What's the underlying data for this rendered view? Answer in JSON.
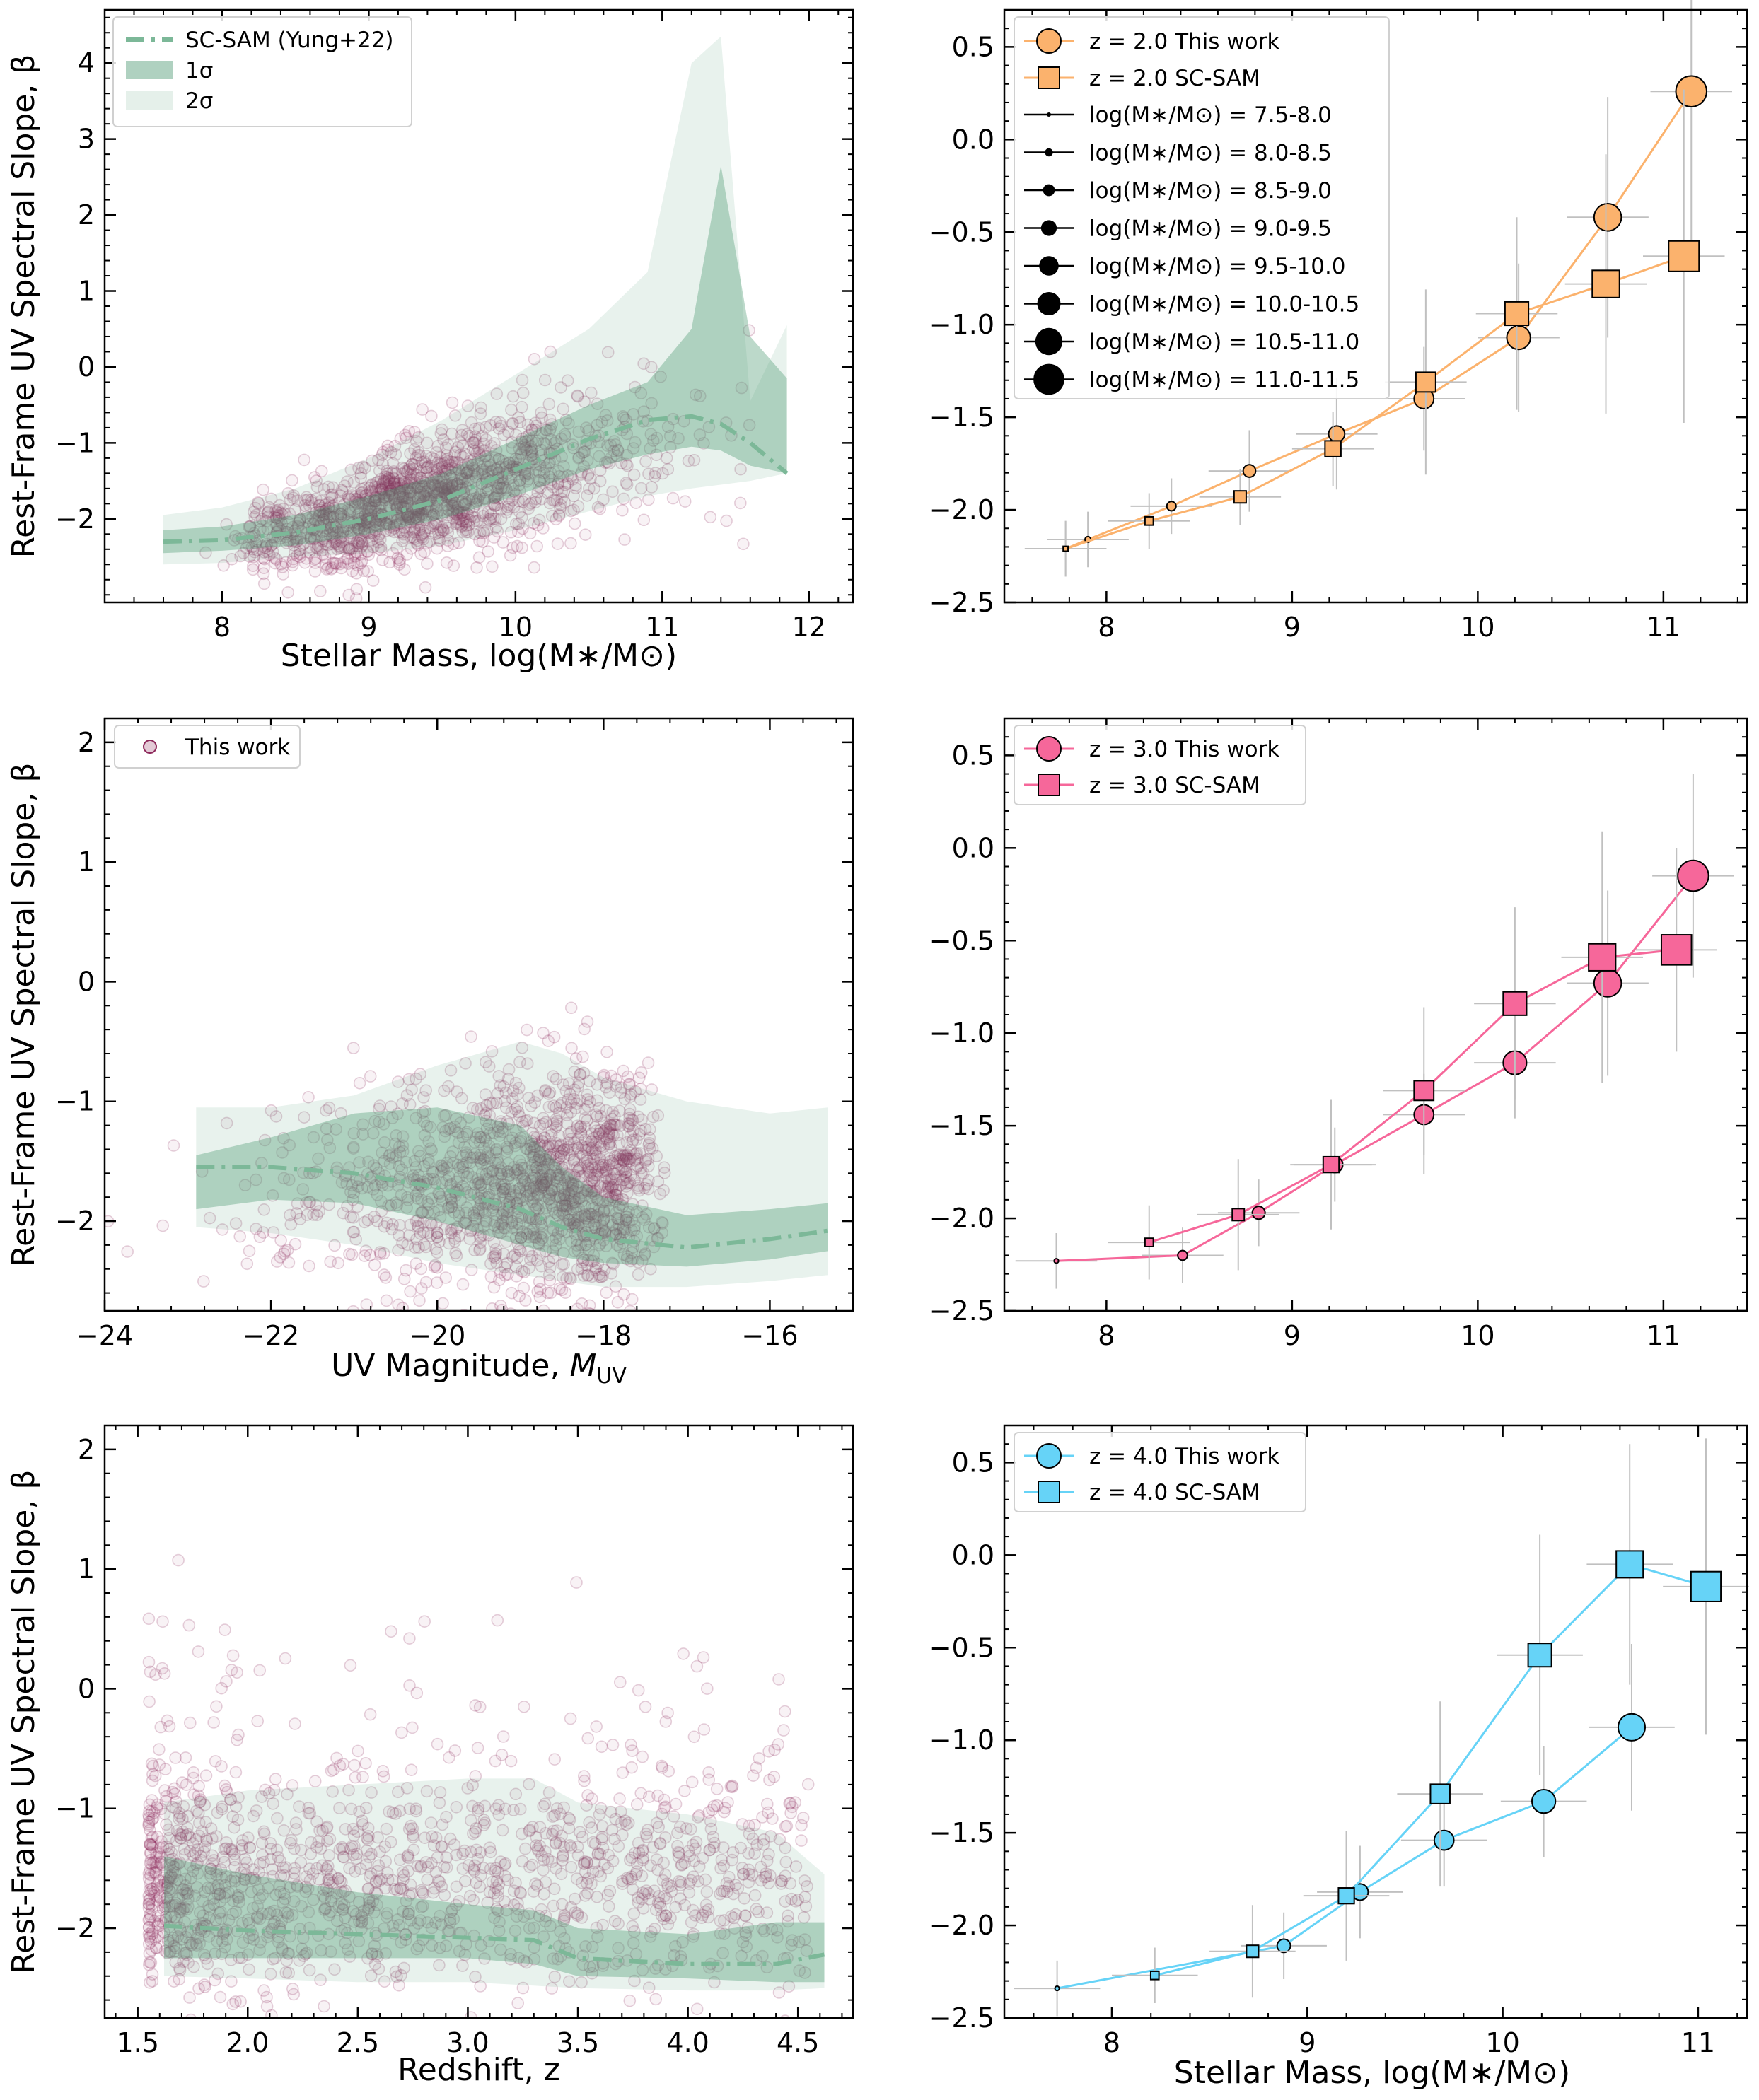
{
  "colors": {
    "sam_band": "#4e9a74",
    "sam_line": "#7cb898",
    "scatter": "#8e2a5c",
    "z2": "#fbb26d",
    "z3": "#f6679a",
    "z4": "#66d3f7",
    "errbar": "#c0c0c0"
  },
  "chart_data": [
    {
      "type": "scatter",
      "panel": "left-top",
      "xlabel": "Stellar Mass, log(M∗/M⊙)",
      "ylabel": "Rest-Frame UV Spectral Slope, β",
      "xlim": [
        7.2,
        12.3
      ],
      "ylim": [
        -3.1,
        4.7
      ],
      "xticks": [
        "8",
        "9",
        "10",
        "11",
        "12"
      ],
      "yticks": [
        "−2",
        "−1",
        "0",
        "1",
        "2",
        "3",
        "4"
      ],
      "legend": [
        "SC-SAM (Yung+22)",
        "1σ",
        "2σ"
      ],
      "sam": {
        "x": [
          7.6,
          8.0,
          8.5,
          9.0,
          9.5,
          10.0,
          10.5,
          10.9,
          11.2,
          11.4,
          11.6,
          11.85
        ],
        "median": [
          -2.3,
          -2.28,
          -2.18,
          -2.0,
          -1.75,
          -1.35,
          -0.95,
          -0.7,
          -0.65,
          -0.75,
          -1.0,
          -1.4
        ],
        "lo1": [
          -2.45,
          -2.42,
          -2.35,
          -2.2,
          -2.0,
          -1.7,
          -1.35,
          -1.15,
          -1.05,
          -1.1,
          -1.3,
          -1.4
        ],
        "hi1": [
          -2.15,
          -2.1,
          -1.95,
          -1.7,
          -1.4,
          -0.95,
          -0.5,
          -0.2,
          0.5,
          2.65,
          0.4,
          -0.15
        ],
        "lo2": [
          -2.6,
          -2.58,
          -2.5,
          -2.45,
          -2.35,
          -2.15,
          -1.9,
          -1.7,
          -1.6,
          -1.55,
          -1.5,
          -1.4
        ],
        "hi2": [
          -1.95,
          -1.85,
          -1.6,
          -1.2,
          -0.7,
          -0.1,
          0.5,
          1.25,
          4.0,
          4.35,
          -0.45,
          0.55
        ]
      }
    },
    {
      "type": "scatter",
      "panel": "left-middle",
      "xlabel": "UV Magnitude, MUV",
      "ylabel": "Rest-Frame UV Spectral Slope, β",
      "xlim": [
        -24.0,
        -15.0
      ],
      "ylim": [
        -2.75,
        2.2
      ],
      "xticks": [
        "−24",
        "−22",
        "−20",
        "−18",
        "−16"
      ],
      "yticks": [
        "−2",
        "−1",
        "0",
        "1",
        "2"
      ],
      "legend": [
        "This work"
      ],
      "sam": {
        "x": [
          -22.9,
          -22.0,
          -21.0,
          -20.0,
          -19.0,
          -18.5,
          -18.0,
          -17.0,
          -16.0,
          -15.3
        ],
        "median": [
          -1.55,
          -1.55,
          -1.6,
          -1.72,
          -1.9,
          -2.05,
          -2.15,
          -2.22,
          -2.15,
          -2.08
        ],
        "lo1": [
          -1.9,
          -1.82,
          -1.85,
          -2.0,
          -2.2,
          -2.3,
          -2.35,
          -2.38,
          -2.32,
          -2.25
        ],
        "hi1": [
          -1.45,
          -1.3,
          -1.1,
          -1.05,
          -1.2,
          -1.55,
          -1.8,
          -1.95,
          -1.9,
          -1.85
        ],
        "lo2": [
          -2.05,
          -2.1,
          -2.2,
          -2.35,
          -2.45,
          -2.5,
          -2.55,
          -2.55,
          -2.5,
          -2.45
        ],
        "hi2": [
          -1.05,
          -1.05,
          -0.95,
          -0.7,
          -0.5,
          -0.6,
          -0.8,
          -1.0,
          -1.1,
          -1.05
        ]
      }
    },
    {
      "type": "scatter",
      "panel": "left-bottom",
      "xlabel": "Redshift, z",
      "ylabel": "Rest-Frame UV Spectral Slope, β",
      "xlim": [
        1.35,
        4.75
      ],
      "ylim": [
        -2.75,
        2.2
      ],
      "xticks": [
        "1.5",
        "2.0",
        "2.5",
        "3.0",
        "3.5",
        "4.0",
        "4.5"
      ],
      "yticks": [
        "−2",
        "−1",
        "0",
        "1",
        "2"
      ],
      "sam": {
        "x": [
          1.62,
          2.0,
          2.5,
          3.0,
          3.3,
          3.5,
          4.0,
          4.4,
          4.62
        ],
        "median": [
          -1.98,
          -2.02,
          -2.05,
          -2.08,
          -2.1,
          -2.25,
          -2.3,
          -2.3,
          -2.22
        ],
        "lo1": [
          -2.25,
          -2.25,
          -2.25,
          -2.25,
          -2.3,
          -2.4,
          -2.42,
          -2.45,
          -2.45
        ],
        "hi1": [
          -1.4,
          -1.55,
          -1.7,
          -1.8,
          -1.85,
          -2.0,
          -2.05,
          -1.95,
          -1.95
        ],
        "lo2": [
          -2.4,
          -2.42,
          -2.45,
          -2.45,
          -2.48,
          -2.5,
          -2.52,
          -2.52,
          -2.5
        ],
        "hi2": [
          -0.95,
          -0.85,
          -0.8,
          -0.75,
          -0.75,
          -0.95,
          -1.05,
          -1.2,
          -1.55
        ]
      }
    },
    {
      "type": "line",
      "panel": "right-top",
      "xlabel": "",
      "xlim": [
        7.45,
        11.45
      ],
      "ylim": [
        -2.5,
        0.7
      ],
      "xticks": [
        "8",
        "9",
        "10",
        "11"
      ],
      "yticks": [
        "−2.5",
        "−2.0",
        "−1.5",
        "−1.0",
        "−0.5",
        "0.0",
        "0.5"
      ],
      "legend": [
        "z = 2.0 This work",
        "z = 2.0 SC-SAM",
        "log(M∗/M⊙) = 7.5-8.0",
        "log(M∗/M⊙) = 8.0-8.5",
        "log(M∗/M⊙) = 8.5-9.0",
        "log(M∗/M⊙) = 9.0-9.5",
        "log(M∗/M⊙) = 9.5-10.0",
        "log(M∗/M⊙) = 10.0-10.5",
        "log(M∗/M⊙) = 10.5-11.0",
        "log(M∗/M⊙) = 11.0-11.5"
      ],
      "series": [
        {
          "name": "z = 2.0 This work",
          "marker": "circle",
          "x": [
            7.78,
            7.9,
            8.35,
            8.77,
            9.24,
            9.71,
            10.22,
            10.7,
            11.15
          ],
          "y": [
            -2.21,
            -2.16,
            -1.98,
            -1.79,
            -1.59,
            -1.4,
            -1.07,
            -0.42,
            0.26
          ],
          "err": [
            0.15,
            0.15,
            0.15,
            0.22,
            0.3,
            0.28,
            0.4,
            0.65,
            0.9
          ]
        },
        {
          "name": "z = 2.0 SC-SAM",
          "marker": "square",
          "x": [
            7.78,
            8.23,
            8.72,
            9.22,
            9.72,
            10.21,
            10.69,
            11.11
          ],
          "y": [
            -2.21,
            -2.06,
            -1.93,
            -1.67,
            -1.31,
            -0.94,
            -0.78,
            -0.63
          ],
          "err": [
            0.15,
            0.15,
            0.15,
            0.2,
            0.5,
            0.52,
            0.7,
            0.9
          ]
        }
      ]
    },
    {
      "type": "line",
      "panel": "right-middle",
      "xlabel": "",
      "xlim": [
        7.45,
        11.45
      ],
      "ylim": [
        -2.5,
        0.7
      ],
      "xticks": [
        "8",
        "9",
        "10",
        "11"
      ],
      "yticks": [
        "−2.5",
        "−2.0",
        "−1.5",
        "−1.0",
        "−0.5",
        "0.0",
        "0.5"
      ],
      "legend": [
        "z = 3.0 This work",
        "z = 3.0 SC-SAM"
      ],
      "series": [
        {
          "name": "z = 3.0 This work",
          "marker": "circle",
          "x": [
            7.73,
            8.41,
            8.82,
            9.23,
            9.71,
            10.2,
            10.7,
            11.16
          ],
          "y": [
            -2.23,
            -2.2,
            -1.97,
            -1.71,
            -1.44,
            -1.16,
            -0.73,
            -0.15
          ],
          "err": [
            0.15,
            0.15,
            0.18,
            0.2,
            0.22,
            0.3,
            0.5,
            0.55
          ]
        },
        {
          "name": "z = 3.0 SC-SAM",
          "marker": "square",
          "x": [
            8.23,
            8.71,
            9.21,
            9.71,
            10.2,
            10.67,
            11.07
          ],
          "y": [
            -2.13,
            -1.98,
            -1.71,
            -1.31,
            -0.84,
            -0.59,
            -0.55
          ],
          "err": [
            0.2,
            0.3,
            0.35,
            0.45,
            0.52,
            0.68,
            0.55
          ]
        }
      ]
    },
    {
      "type": "line",
      "panel": "right-bottom",
      "xlabel": "Stellar Mass, log(M∗/M⊙)",
      "xlim": [
        7.45,
        11.25
      ],
      "ylim": [
        -2.5,
        0.7
      ],
      "xticks": [
        "8",
        "9",
        "10",
        "11"
      ],
      "yticks": [
        "−2.5",
        "−2.0",
        "−1.5",
        "−1.0",
        "−0.5",
        "0.0",
        "0.5"
      ],
      "legend": [
        "z = 4.0 This work",
        "z = 4.0 SC-SAM"
      ],
      "series": [
        {
          "name": "z = 4.0 This work",
          "marker": "circle",
          "x": [
            7.72,
            8.88,
            9.27,
            9.7,
            10.21,
            10.66
          ],
          "y": [
            -2.34,
            -2.11,
            -1.82,
            -1.54,
            -1.33,
            -0.93
          ],
          "err": [
            0.15,
            0.18,
            0.25,
            0.25,
            0.3,
            0.45
          ]
        },
        {
          "name": "z = 4.0 SC-SAM",
          "marker": "square",
          "x": [
            8.22,
            8.72,
            9.2,
            9.68,
            10.19,
            10.65,
            11.04
          ],
          "y": [
            -2.27,
            -2.14,
            -1.84,
            -1.29,
            -0.54,
            -0.05,
            -0.17
          ],
          "err": [
            0.15,
            0.25,
            0.35,
            0.5,
            0.65,
            0.65,
            0.8
          ]
        }
      ]
    }
  ]
}
